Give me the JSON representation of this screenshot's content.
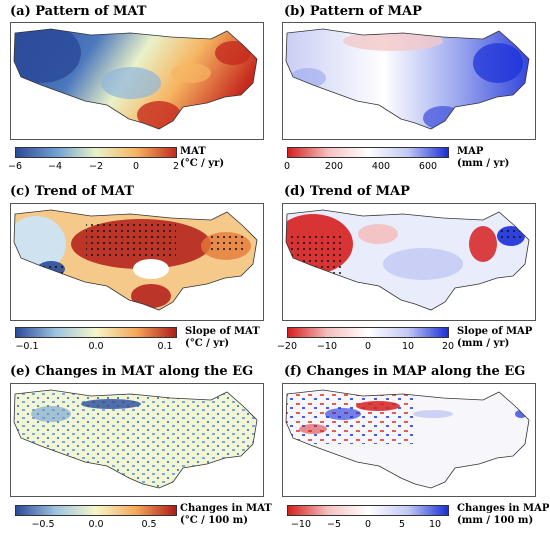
{
  "panels": [
    {
      "id": "a",
      "title": "(a) Pattern of MAT",
      "colorbar": {
        "label_line1": "MAT",
        "label_line2": "(°C / yr)",
        "ticks": [
          "−6",
          "−4",
          "−2",
          "0",
          "2"
        ],
        "colors": [
          "#2b4b9b",
          "#6f9fd0",
          "#e9f2c9",
          "#f6b562",
          "#c62a1e"
        ]
      }
    },
    {
      "id": "b",
      "title": "(b) Pattern of MAP",
      "colorbar": {
        "label_line1": "MAP",
        "label_line2": "(mm / yr)",
        "ticks": [
          "0",
          "200",
          "400",
          "600"
        ],
        "colors": [
          "#d62020",
          "#f4c0c0",
          "#ffffff",
          "#c2c8f4",
          "#1a2fd8"
        ]
      }
    },
    {
      "id": "c",
      "title": "(c) Trend of MAT",
      "colorbar": {
        "label_line1": "Slope of MAT",
        "label_line2": "(°C / yr)",
        "ticks": [
          "−0.1",
          "0.0",
          "0.1"
        ],
        "colors": [
          "#2b4b9b",
          "#9fc4e0",
          "#f5f6c8",
          "#f4a85a",
          "#b01c18"
        ]
      }
    },
    {
      "id": "d",
      "title": "(d) Trend of MAP",
      "colorbar": {
        "label_line1": "Slope of MAP",
        "label_line2": "(mm / yr)",
        "ticks": [
          "−20",
          "−10",
          "0",
          "10",
          "20"
        ],
        "colors": [
          "#d62020",
          "#f4c0c0",
          "#ffffff",
          "#c2c8f4",
          "#1a2fd8"
        ]
      }
    },
    {
      "id": "e",
      "title": "(e) Changes in MAT along the EG",
      "colorbar": {
        "label_line1": "Changes in MAT",
        "label_line2": "(°C / 100 m)",
        "ticks": [
          "−0.5",
          "0.0",
          "0.5"
        ],
        "colors": [
          "#2b4b9b",
          "#9fc4e0",
          "#f5f6c8",
          "#f4a85a",
          "#b01c18"
        ]
      }
    },
    {
      "id": "f",
      "title": "(f) Changes in MAP along the EG",
      "colorbar": {
        "label_line1": "Changes in MAP",
        "label_line2": "(mm / 100 m)",
        "ticks": [
          "−10",
          "−5",
          "0",
          "5",
          "10"
        ],
        "colors": [
          "#d62020",
          "#f4c0c0",
          "#ffffff",
          "#c2c8f4",
          "#1a2fd8"
        ]
      }
    }
  ]
}
